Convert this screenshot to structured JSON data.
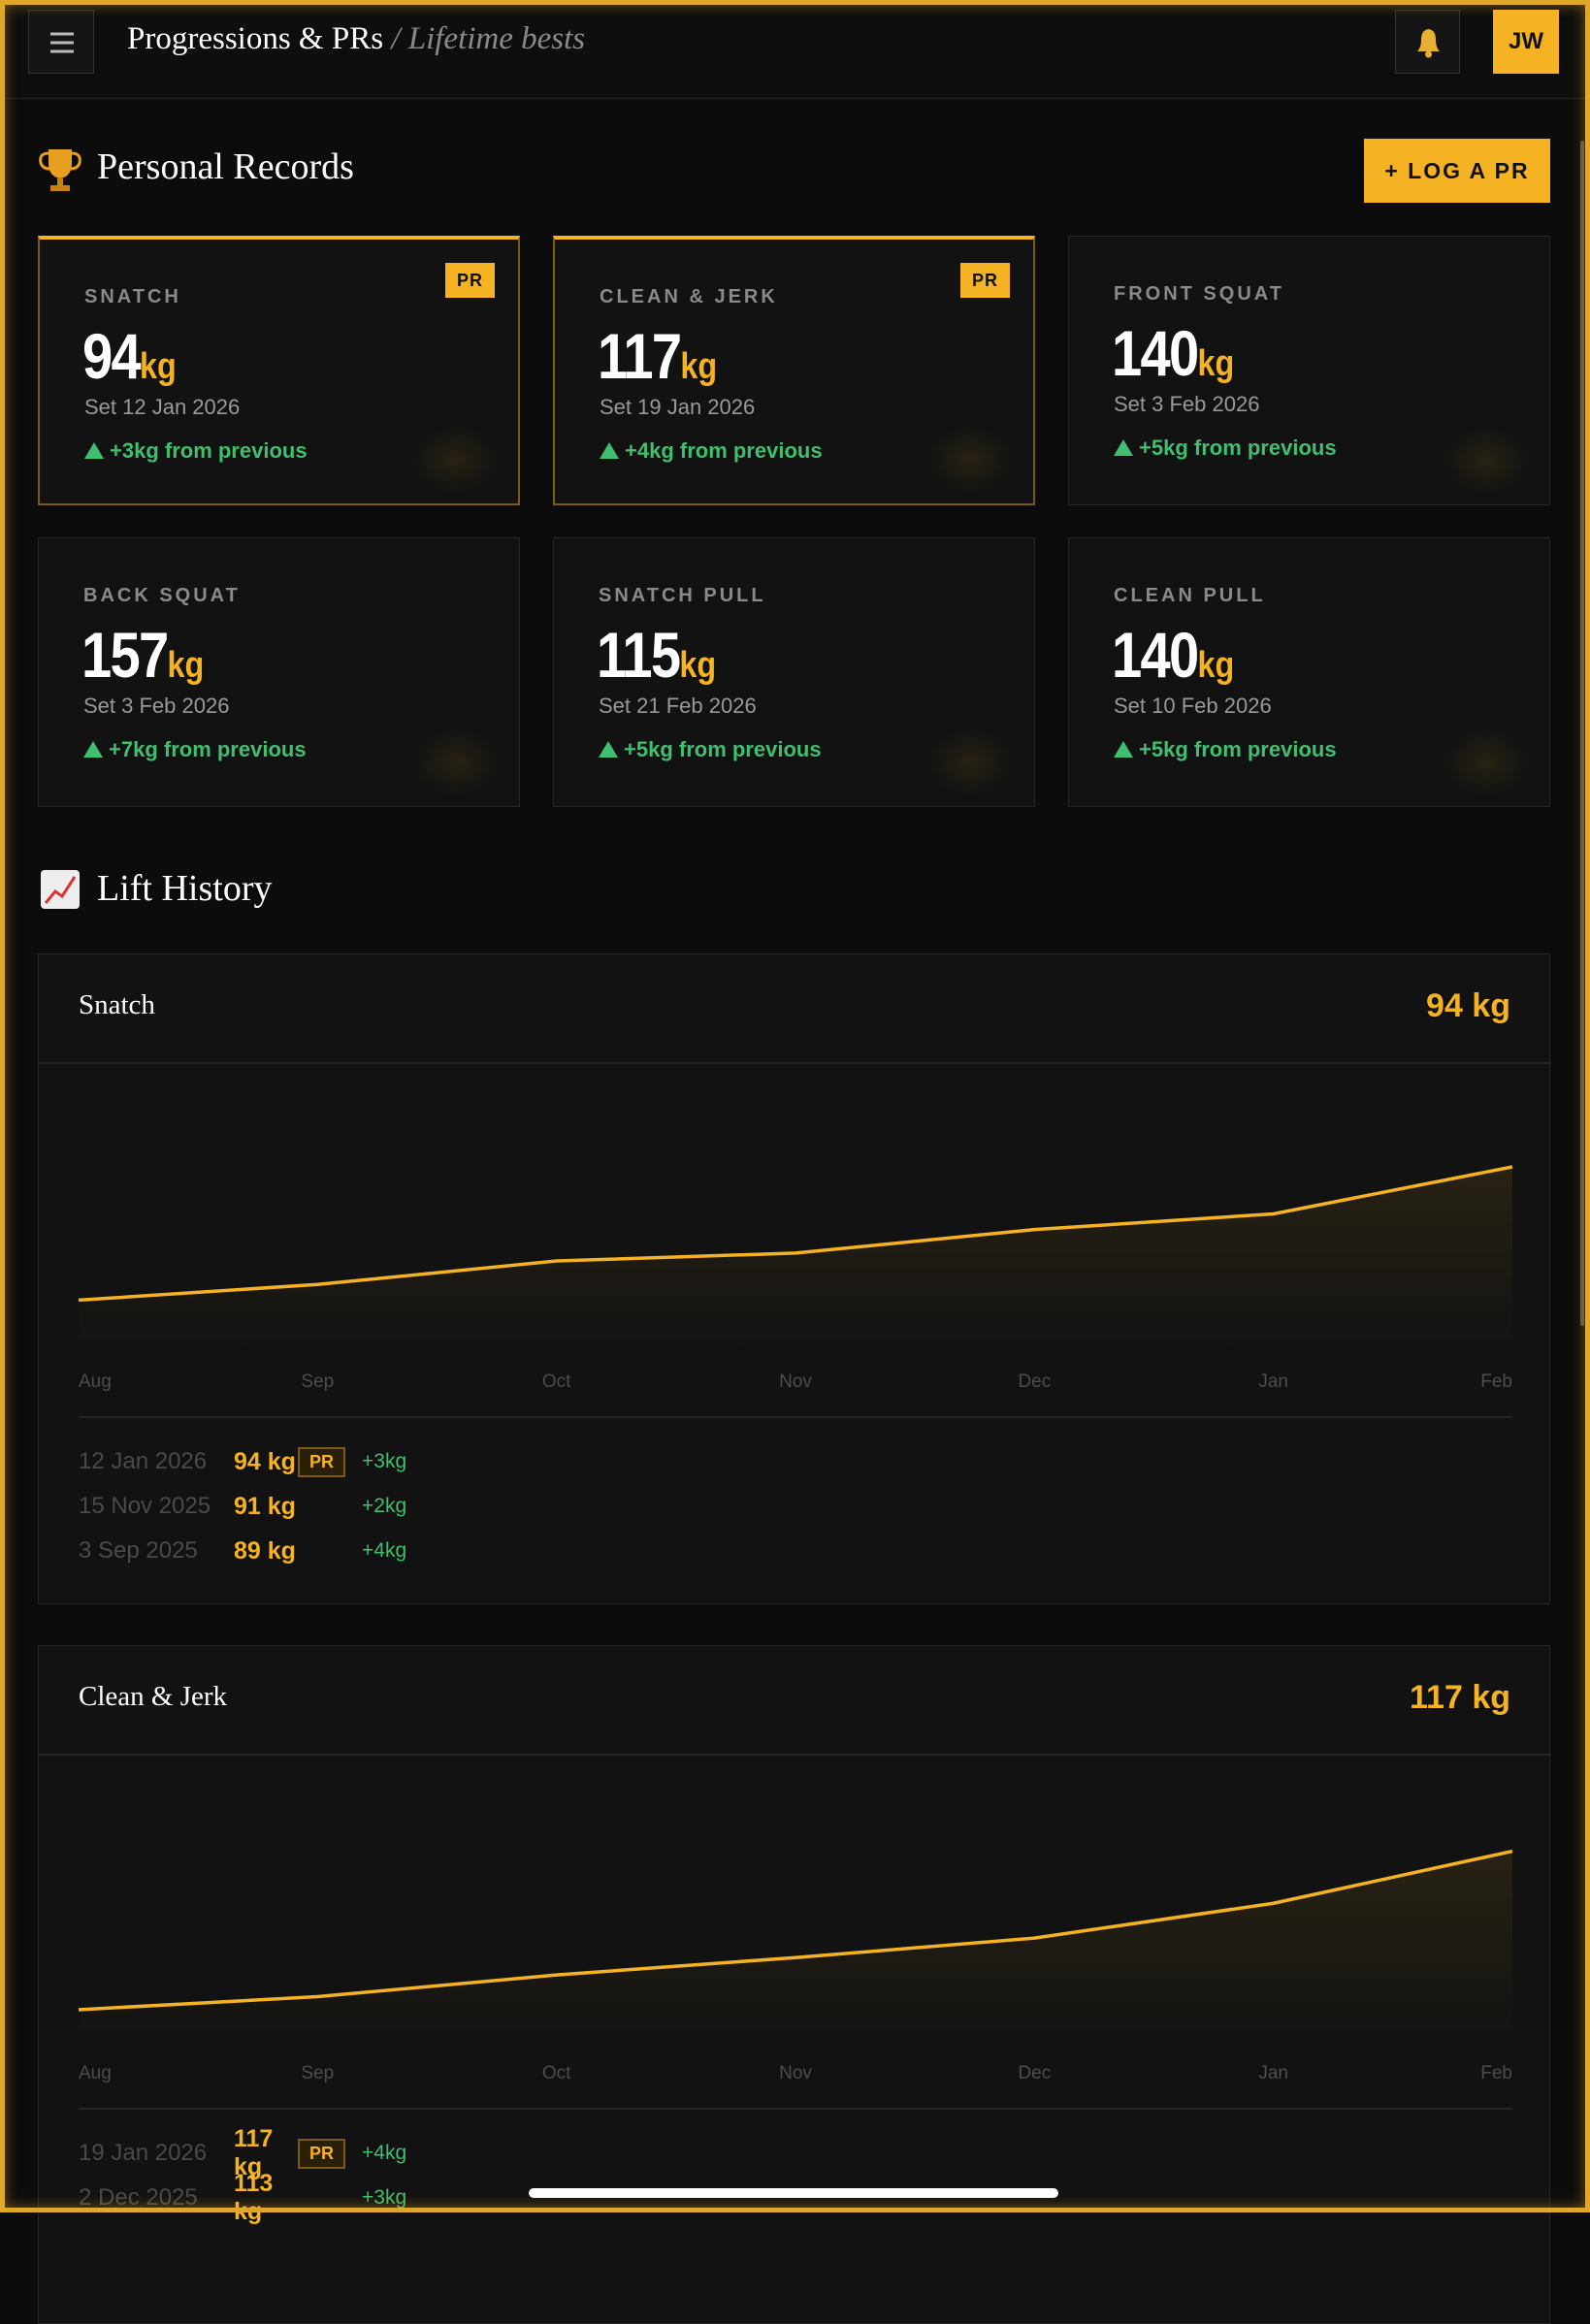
{
  "header": {
    "title": "Progressions & PRs",
    "subtitle": "/ Lifetime bests",
    "avatar": "JW"
  },
  "records": {
    "title": "Personal Records",
    "button": "+ LOG A PR",
    "cards": [
      {
        "lift": "SNATCH",
        "value": 94,
        "unit": "kg",
        "date": "Set 12 Jan 2026",
        "delta": "+3kg from previous",
        "badge": "PR"
      },
      {
        "lift": "CLEAN & JERK",
        "value": 117,
        "unit": "kg",
        "date": "Set 19 Jan 2026",
        "delta": "+4kg from previous",
        "badge": "PR"
      },
      {
        "lift": "FRONT SQUAT",
        "value": 140,
        "unit": "kg",
        "date": "Set 3 Feb 2026",
        "delta": "+5kg from previous"
      },
      {
        "lift": "BACK SQUAT",
        "value": 157,
        "unit": "kg",
        "date": "Set 3 Feb 2026",
        "delta": "+7kg from previous"
      },
      {
        "lift": "SNATCH PULL",
        "value": 115,
        "unit": "kg",
        "date": "Set 21 Feb 2026",
        "delta": "+5kg from previous"
      },
      {
        "lift": "CLEAN PULL",
        "value": 140,
        "unit": "kg",
        "date": "Set 10 Feb 2026",
        "delta": "+5kg from previous"
      }
    ]
  },
  "history": {
    "title": "Lift History"
  },
  "chart_data": [
    {
      "type": "line",
      "title": "Snatch",
      "summary": "94 kg",
      "categories": [
        "Aug",
        "Sep",
        "Oct",
        "Nov",
        "Dec",
        "Jan",
        "Feb"
      ],
      "values": [
        85.5,
        86.5,
        88,
        88.5,
        90,
        91,
        94
      ],
      "color": "#f5b324",
      "ylim": [
        82,
        100
      ],
      "entries": [
        {
          "date": "12 Jan 2026",
          "value": "94 kg",
          "badge": "PR",
          "delta": "+3kg"
        },
        {
          "date": "15 Nov 2025",
          "value": "91 kg",
          "delta": "+2kg"
        },
        {
          "date": "3 Sep 2025",
          "value": "89 kg",
          "delta": "+4kg"
        }
      ]
    },
    {
      "type": "line",
      "title": "Clean & Jerk",
      "summary": "117 kg",
      "categories": [
        "Aug",
        "Sep",
        "Oct",
        "Nov",
        "Dec",
        "Jan",
        "Feb"
      ],
      "values": [
        109.7,
        110.3,
        111.3,
        112.1,
        113,
        114.6,
        117
      ],
      "color": "#f5b324",
      "ylim": [
        108,
        121
      ],
      "entries": [
        {
          "date": "19 Jan 2026",
          "value": "117 kg",
          "badge": "PR",
          "delta": "+4kg"
        },
        {
          "date": "2 Dec 2025",
          "value": "113 kg",
          "delta": "+3kg"
        }
      ]
    }
  ]
}
